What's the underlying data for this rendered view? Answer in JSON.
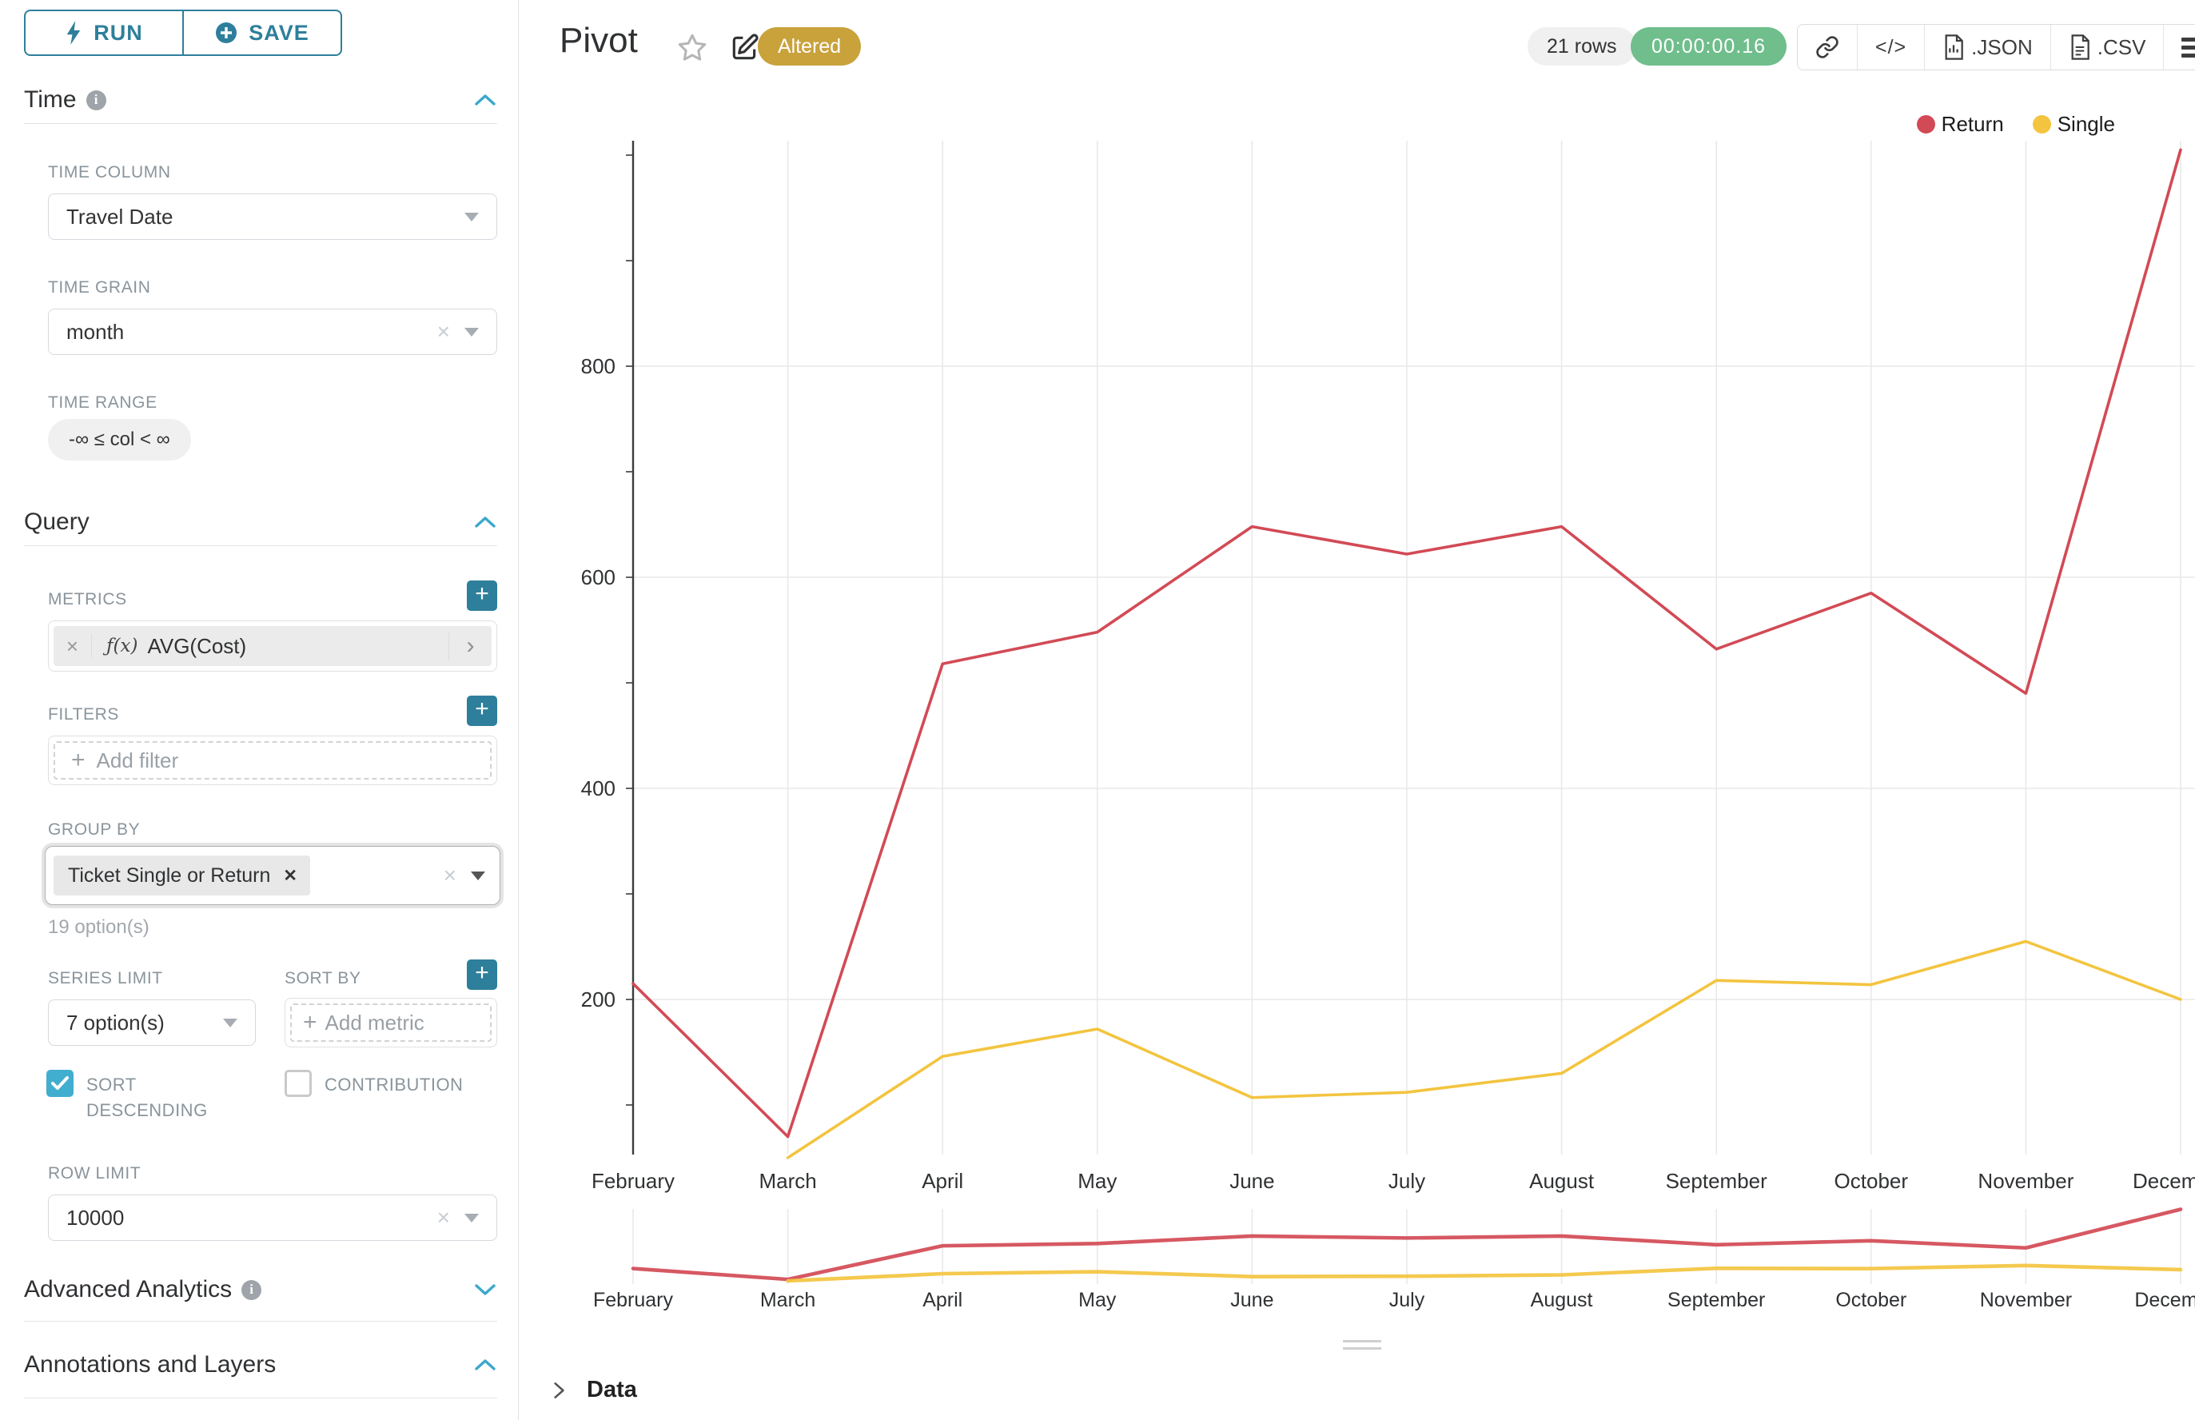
{
  "colors": {
    "teal": "#2e7f9b",
    "teal_light": "#41aecf",
    "chevron_blue": "#3ba8cc",
    "gold": "#c9a23c",
    "green": "#6fbe8c",
    "axis": "#3c3c3c",
    "grid": "#e9e9e9",
    "return_red": "#d24a55",
    "single_yellow": "#f3c43f"
  },
  "icons": {
    "plus": "+",
    "clear_x": "×",
    "tag_remove": "✕",
    "pill_chevron": "›",
    "code": "</>",
    "info": "i"
  },
  "sidebar": {
    "run_label": "RUN",
    "save_label": "SAVE",
    "time_section": "Time",
    "query_section": "Query",
    "advanced_section": "Advanced Analytics",
    "annotations_section": "Annotations and Layers",
    "time_column": {
      "label": "TIME COLUMN",
      "value": "Travel Date"
    },
    "time_grain": {
      "label": "TIME GRAIN",
      "value": "month"
    },
    "time_range": {
      "label": "TIME RANGE",
      "value": "-∞ ≤ col < ∞"
    },
    "metrics": {
      "label": "METRICS",
      "fx": "ƒ(x)",
      "value": "AVG(Cost)"
    },
    "filters": {
      "label": "FILTERS",
      "placeholder": "Add filter"
    },
    "group_by": {
      "label": "GROUP BY",
      "tag": "Ticket Single or Return",
      "hint": "19 option(s)"
    },
    "series_limit": {
      "label": "SERIES LIMIT",
      "value": "7 option(s)"
    },
    "sort_by": {
      "label": "SORT BY",
      "placeholder": "Add metric"
    },
    "sort_descending": {
      "label": "SORT DESCENDING",
      "checked": true
    },
    "contribution": {
      "label": "CONTRIBUTION",
      "checked": false
    },
    "row_limit": {
      "label": "ROW LIMIT",
      "value": "10000"
    }
  },
  "header": {
    "title": "Pivot",
    "badge": "Altered",
    "rows": "21 rows",
    "timer": "00:00:00.16",
    "json_label": ".JSON",
    "csv_label": ".CSV"
  },
  "data_panel": {
    "label": "Data"
  },
  "chart_data": {
    "type": "line",
    "title": "",
    "xlabel": "",
    "ylabel": "",
    "categories": [
      "February",
      "March",
      "April",
      "May",
      "June",
      "July",
      "August",
      "September",
      "October",
      "November",
      "December"
    ],
    "series": [
      {
        "name": "Return",
        "color": "#d24a55",
        "values": [
          215,
          70,
          518,
          548,
          648,
          622,
          648,
          532,
          585,
          490,
          1005
        ]
      },
      {
        "name": "Single",
        "color": "#f3c43f",
        "values": [
          null,
          50,
          146,
          172,
          107,
          112,
          130,
          218,
          214,
          255,
          200
        ]
      }
    ],
    "yticks": [
      200,
      400,
      600,
      800
    ],
    "ylim": [
      50,
      1010
    ],
    "grid": true,
    "legend_position": "top-right",
    "has_preview_strip": true
  }
}
